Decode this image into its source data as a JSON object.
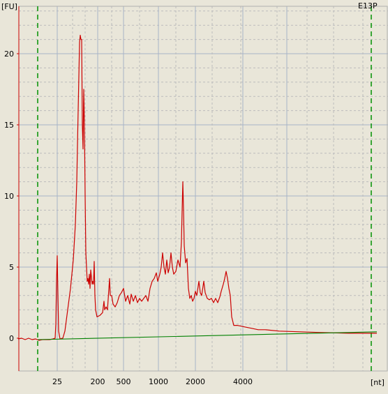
{
  "sample_label": "E13P",
  "chart_data": {
    "type": "line",
    "ylabel": "[FU]",
    "xlabel": "[nt]",
    "ylim": [
      -2.2,
      23.5
    ],
    "y_ticks": [
      0,
      5,
      10,
      15,
      20
    ],
    "x_ticks": [
      "25",
      "200",
      "500",
      "1000",
      "2000",
      "4000"
    ],
    "grid": true,
    "colors": {
      "trace": "#cc0000",
      "baseline": "#008000",
      "marker": "#009000",
      "axis": "#cc0000",
      "grid_major": "#a8b4c8",
      "grid_minor": "#bcbcbc"
    },
    "series": [
      {
        "style": "trace",
        "points": [
          [
            26,
            -0.05
          ],
          [
            31,
            0.0
          ],
          [
            36,
            -0.1
          ],
          [
            41,
            0.0
          ],
          [
            46,
            -0.1
          ],
          [
            51,
            -0.05
          ],
          [
            56,
            -0.15
          ],
          [
            61,
            -0.1
          ],
          [
            66,
            -0.1
          ],
          [
            71,
            -0.1
          ],
          [
            76,
            -0.05
          ],
          [
            79,
            0.0
          ],
          [
            80,
            1.0
          ],
          [
            81,
            4.0
          ],
          [
            82,
            5.8
          ],
          [
            83,
            3.0
          ],
          [
            84,
            0.5
          ],
          [
            86,
            -0.05
          ],
          [
            90,
            0.0
          ],
          [
            93,
            0.5
          ],
          [
            97,
            2.0
          ],
          [
            101,
            3.5
          ],
          [
            105,
            5.5
          ],
          [
            108,
            8.0
          ],
          [
            110,
            11.0
          ],
          [
            112,
            16.0
          ],
          [
            114,
            20.8
          ],
          [
            115,
            21.3
          ],
          [
            116,
            21.0
          ],
          [
            117,
            21.0
          ],
          [
            118,
            15.0
          ],
          [
            119,
            13.3
          ],
          [
            120,
            17.5
          ],
          [
            121,
            15.0
          ],
          [
            122,
            10.0
          ],
          [
            123,
            6.0
          ],
          [
            125,
            4.0
          ],
          [
            126,
            4.2
          ],
          [
            127,
            3.8
          ],
          [
            128,
            4.5
          ],
          [
            129,
            3.5
          ],
          [
            130,
            4.8
          ],
          [
            132,
            3.8
          ],
          [
            133,
            4.0
          ],
          [
            134,
            3.8
          ],
          [
            135,
            5.4
          ],
          [
            136,
            3.0
          ],
          [
            137,
            2.0
          ],
          [
            139,
            1.5
          ],
          [
            143,
            1.6
          ],
          [
            147,
            1.8
          ],
          [
            149,
            2.6
          ],
          [
            150,
            2.0
          ],
          [
            152,
            2.2
          ],
          [
            154,
            2.0
          ],
          [
            157,
            4.2
          ],
          [
            158,
            3.0
          ],
          [
            160,
            3.0
          ],
          [
            162,
            2.4
          ],
          [
            165,
            2.2
          ],
          [
            168,
            2.5
          ],
          [
            171,
            3.0
          ],
          [
            174,
            3.2
          ],
          [
            177,
            3.5
          ],
          [
            180,
            2.6
          ],
          [
            183,
            3.0
          ],
          [
            186,
            2.4
          ],
          [
            188,
            3.1
          ],
          [
            191,
            2.6
          ],
          [
            194,
            3.0
          ],
          [
            197,
            2.5
          ],
          [
            200,
            2.8
          ],
          [
            203,
            2.6
          ],
          [
            206,
            2.8
          ],
          [
            209,
            3.0
          ],
          [
            212,
            2.6
          ],
          [
            215,
            3.5
          ],
          [
            218,
            4.0
          ],
          [
            221,
            4.2
          ],
          [
            224,
            4.6
          ],
          [
            226,
            4.0
          ],
          [
            229,
            4.5
          ],
          [
            231,
            5.0
          ],
          [
            233,
            6.0
          ],
          [
            235,
            5.0
          ],
          [
            237,
            4.5
          ],
          [
            239,
            5.5
          ],
          [
            241,
            4.6
          ],
          [
            243,
            5.0
          ],
          [
            245,
            6.0
          ],
          [
            247,
            5.0
          ],
          [
            249,
            4.5
          ],
          [
            252,
            4.7
          ],
          [
            255,
            5.5
          ],
          [
            258,
            5.0
          ],
          [
            260,
            6.8
          ],
          [
            261,
            9.0
          ],
          [
            262,
            11.0
          ],
          [
            263,
            9.0
          ],
          [
            264,
            6.5
          ],
          [
            266,
            5.3
          ],
          [
            268,
            5.6
          ],
          [
            270,
            3.5
          ],
          [
            272,
            2.8
          ],
          [
            274,
            3.0
          ],
          [
            276,
            2.6
          ],
          [
            278,
            2.8
          ],
          [
            280,
            3.3
          ],
          [
            282,
            3.0
          ],
          [
            285,
            4.0
          ],
          [
            287,
            3.2
          ],
          [
            289,
            3.0
          ],
          [
            292,
            4.0
          ],
          [
            294,
            3.2
          ],
          [
            297,
            2.8
          ],
          [
            300,
            2.7
          ],
          [
            303,
            2.8
          ],
          [
            306,
            2.5
          ],
          [
            309,
            2.8
          ],
          [
            312,
            2.5
          ],
          [
            315,
            2.9
          ],
          [
            317,
            3.3
          ],
          [
            320,
            3.8
          ],
          [
            322,
            4.2
          ],
          [
            324,
            4.7
          ],
          [
            326,
            4.2
          ],
          [
            328,
            3.5
          ],
          [
            330,
            3.0
          ],
          [
            332,
            1.5
          ],
          [
            335,
            0.9
          ],
          [
            340,
            0.9
          ],
          [
            350,
            0.8
          ],
          [
            360,
            0.7
          ],
          [
            370,
            0.6
          ],
          [
            380,
            0.6
          ],
          [
            400,
            0.5
          ],
          [
            430,
            0.45
          ],
          [
            460,
            0.4
          ],
          [
            500,
            0.35
          ],
          [
            540,
            0.35
          ]
        ]
      },
      {
        "style": "baseline",
        "points": [
          [
            54,
            -0.1
          ],
          [
            540,
            0.45
          ]
        ]
      }
    ],
    "markers_x": [
      54,
      532
    ]
  }
}
